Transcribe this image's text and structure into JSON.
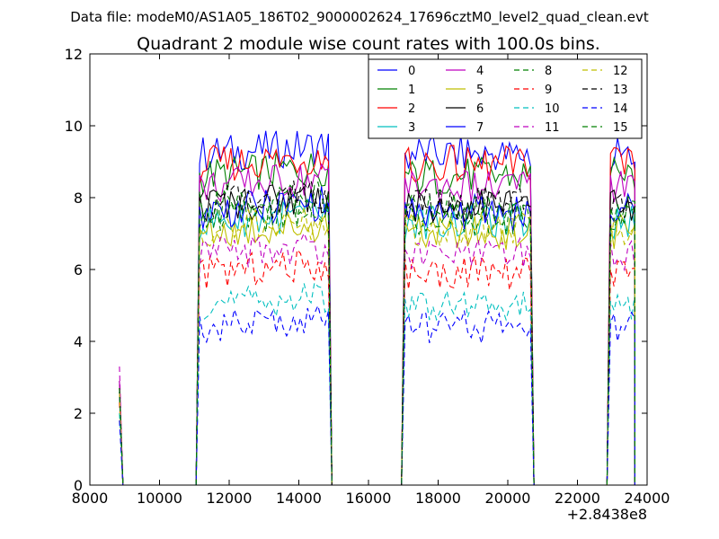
{
  "chart_data": {
    "type": "line",
    "suptitle": "Data file: modeM0/AS1A05_186T02_9000002624_17696cztM0_level2_quad_clean.evt",
    "title": "Quadrant 2 module wise count rates with 100.0s bins.",
    "xlabel": "",
    "ylabel": "",
    "x_offset_label": "+2.8438e8",
    "xlim": [
      8000,
      24000
    ],
    "ylim": [
      0,
      12
    ],
    "xticks": [
      8000,
      10000,
      12000,
      14000,
      16000,
      18000,
      20000,
      22000,
      24000
    ],
    "yticks": [
      0,
      2,
      4,
      6,
      8,
      10,
      12
    ],
    "grid": false,
    "legend_position": "top-right",
    "legend_columns": 4,
    "bins_note": "approximate per-module levels read from the plot",
    "x_segments": [
      {
        "times": [
          8850,
          8950,
          9050
        ],
        "kind": "spike"
      },
      {
        "start": 11150,
        "end": 14850,
        "step": 100,
        "ramp_from": 11050,
        "drop_to": 14950
      },
      {
        "start": 17050,
        "end": 20650,
        "step": 100,
        "ramp_from": 16950,
        "drop_to": 20750
      },
      {
        "start": 22950,
        "end": 23650,
        "step": 100,
        "ramp_from": 22850,
        "drop_to": 23650
      }
    ],
    "series": [
      {
        "name": "0",
        "color": "#0000ff",
        "dash": "solid",
        "level": 9.2,
        "spike": 2.9
      },
      {
        "name": "1",
        "color": "#008000",
        "dash": "solid",
        "level": 8.6,
        "spike": 2.8
      },
      {
        "name": "2",
        "color": "#ff0000",
        "dash": "solid",
        "level": 8.9,
        "spike": 2.9
      },
      {
        "name": "3",
        "color": "#00bfbf",
        "dash": "solid",
        "level": 7.3,
        "spike": 2.6
      },
      {
        "name": "4",
        "color": "#bf00bf",
        "dash": "solid",
        "level": 8.3,
        "spike": 2.9
      },
      {
        "name": "5",
        "color": "#bfbf00",
        "dash": "solid",
        "level": 7.0,
        "spike": 2.5
      },
      {
        "name": "6",
        "color": "#000000",
        "dash": "solid",
        "level": 7.8,
        "spike": 2.7
      },
      {
        "name": "7",
        "color": "#0000ff",
        "dash": "solid",
        "level": 7.6,
        "spike": 2.6
      },
      {
        "name": "8",
        "color": "#008000",
        "dash": "dashed",
        "level": 7.4,
        "spike": 2.6
      },
      {
        "name": "9",
        "color": "#ff0000",
        "dash": "dashed",
        "level": 5.9,
        "spike": 2.3
      },
      {
        "name": "10",
        "color": "#00bfbf",
        "dash": "dashed",
        "level": 5.0,
        "spike": 2.0
      },
      {
        "name": "11",
        "color": "#bf00bf",
        "dash": "dashed",
        "level": 6.4,
        "spike": 3.3
      },
      {
        "name": "12",
        "color": "#bfbf00",
        "dash": "dashed",
        "level": 7.1,
        "spike": 2.6
      },
      {
        "name": "13",
        "color": "#000000",
        "dash": "dashed",
        "level": 7.8,
        "spike": 2.7
      },
      {
        "name": "14",
        "color": "#0000ff",
        "dash": "dashed",
        "level": 4.4,
        "spike": 1.8
      },
      {
        "name": "15",
        "color": "#008000",
        "dash": "dashed",
        "level": 7.7,
        "spike": 2.7
      }
    ]
  }
}
